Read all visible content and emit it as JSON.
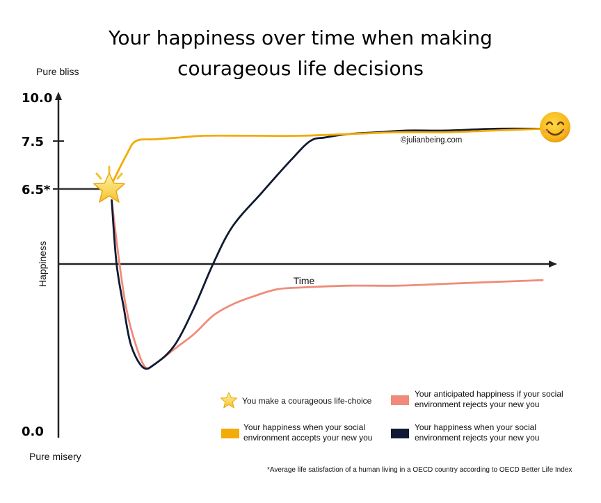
{
  "chart_data": {
    "type": "line",
    "title": [
      "Your happiness over time when making",
      "courageous life decisions"
    ],
    "ylabel": "Happiness",
    "xlabel": "Time",
    "y_top_label": "Pure bliss",
    "y_bottom_label": "Pure misery",
    "ylim": [
      0,
      10
    ],
    "y_ticks": [
      {
        "value": 10.0,
        "label": "10.0"
      },
      {
        "value": 7.5,
        "label": "7.5"
      },
      {
        "value": 6.5,
        "label": "6.5*"
      },
      {
        "value": 0.0,
        "label": "0.0"
      }
    ],
    "watermark": "©julianbeing.com",
    "footnote": "*Average life satisfaction of a human living in a OECD country according to OECD Better Life Index",
    "series": [
      {
        "key": "accepts",
        "color": "#f2ab07",
        "x": [
          0.11,
          0.14,
          0.16,
          0.2,
          0.25,
          0.3,
          0.4,
          0.5,
          0.6,
          0.7,
          0.8,
          0.9,
          1.0
        ],
        "y": [
          6.6,
          7.2,
          7.5,
          7.6,
          7.7,
          7.8,
          7.8,
          7.8,
          7.9,
          8.0,
          8.0,
          8.1,
          8.2
        ]
      },
      {
        "key": "rejects",
        "color": "#111a33",
        "x": [
          0.11,
          0.12,
          0.135,
          0.15,
          0.175,
          0.2,
          0.24,
          0.28,
          0.32,
          0.36,
          0.42,
          0.48,
          0.52,
          0.55,
          0.6,
          0.66,
          0.72,
          0.8,
          0.9,
          1.0
        ],
        "y": [
          6.2,
          4.5,
          3.3,
          2.3,
          1.7,
          1.8,
          2.3,
          3.3,
          4.5,
          5.5,
          6.4,
          7.1,
          7.5,
          7.7,
          7.9,
          8.0,
          8.1,
          8.1,
          8.2,
          8.2
        ]
      },
      {
        "key": "anticipated",
        "color": "#f08b7b",
        "x": [
          0.11,
          0.125,
          0.14,
          0.16,
          0.18,
          0.2,
          0.24,
          0.28,
          0.32,
          0.36,
          0.4,
          0.45,
          0.5,
          0.6,
          0.7,
          0.8,
          0.9,
          1.0
        ],
        "y": [
          6.2,
          4.6,
          3.3,
          2.3,
          1.7,
          1.8,
          2.2,
          2.6,
          3.1,
          3.4,
          3.6,
          3.8,
          3.85,
          3.9,
          3.9,
          3.95,
          4.0,
          4.05
        ]
      }
    ],
    "pre_line": {
      "x": [
        0.0,
        0.11
      ],
      "y": [
        6.5,
        6.5
      ],
      "color": "#333333"
    },
    "legend": [
      {
        "key": "star",
        "icon": "star-icon",
        "label": [
          "You make a courageous life-choice"
        ]
      },
      {
        "key": "anticipated",
        "color": "#f08b7b",
        "label": [
          "Your anticipated happiness if your social",
          "environment rejects your new you"
        ]
      },
      {
        "key": "accepts",
        "color": "#f2ab07",
        "label": [
          "Your happiness when your social",
          "environment accepts your new you"
        ]
      },
      {
        "key": "rejects",
        "color": "#111a33",
        "label": [
          "Your happiness when your social",
          "environment rejects your new you"
        ]
      }
    ],
    "icons": {
      "start": "star-icon",
      "end": "smiley-icon"
    }
  }
}
